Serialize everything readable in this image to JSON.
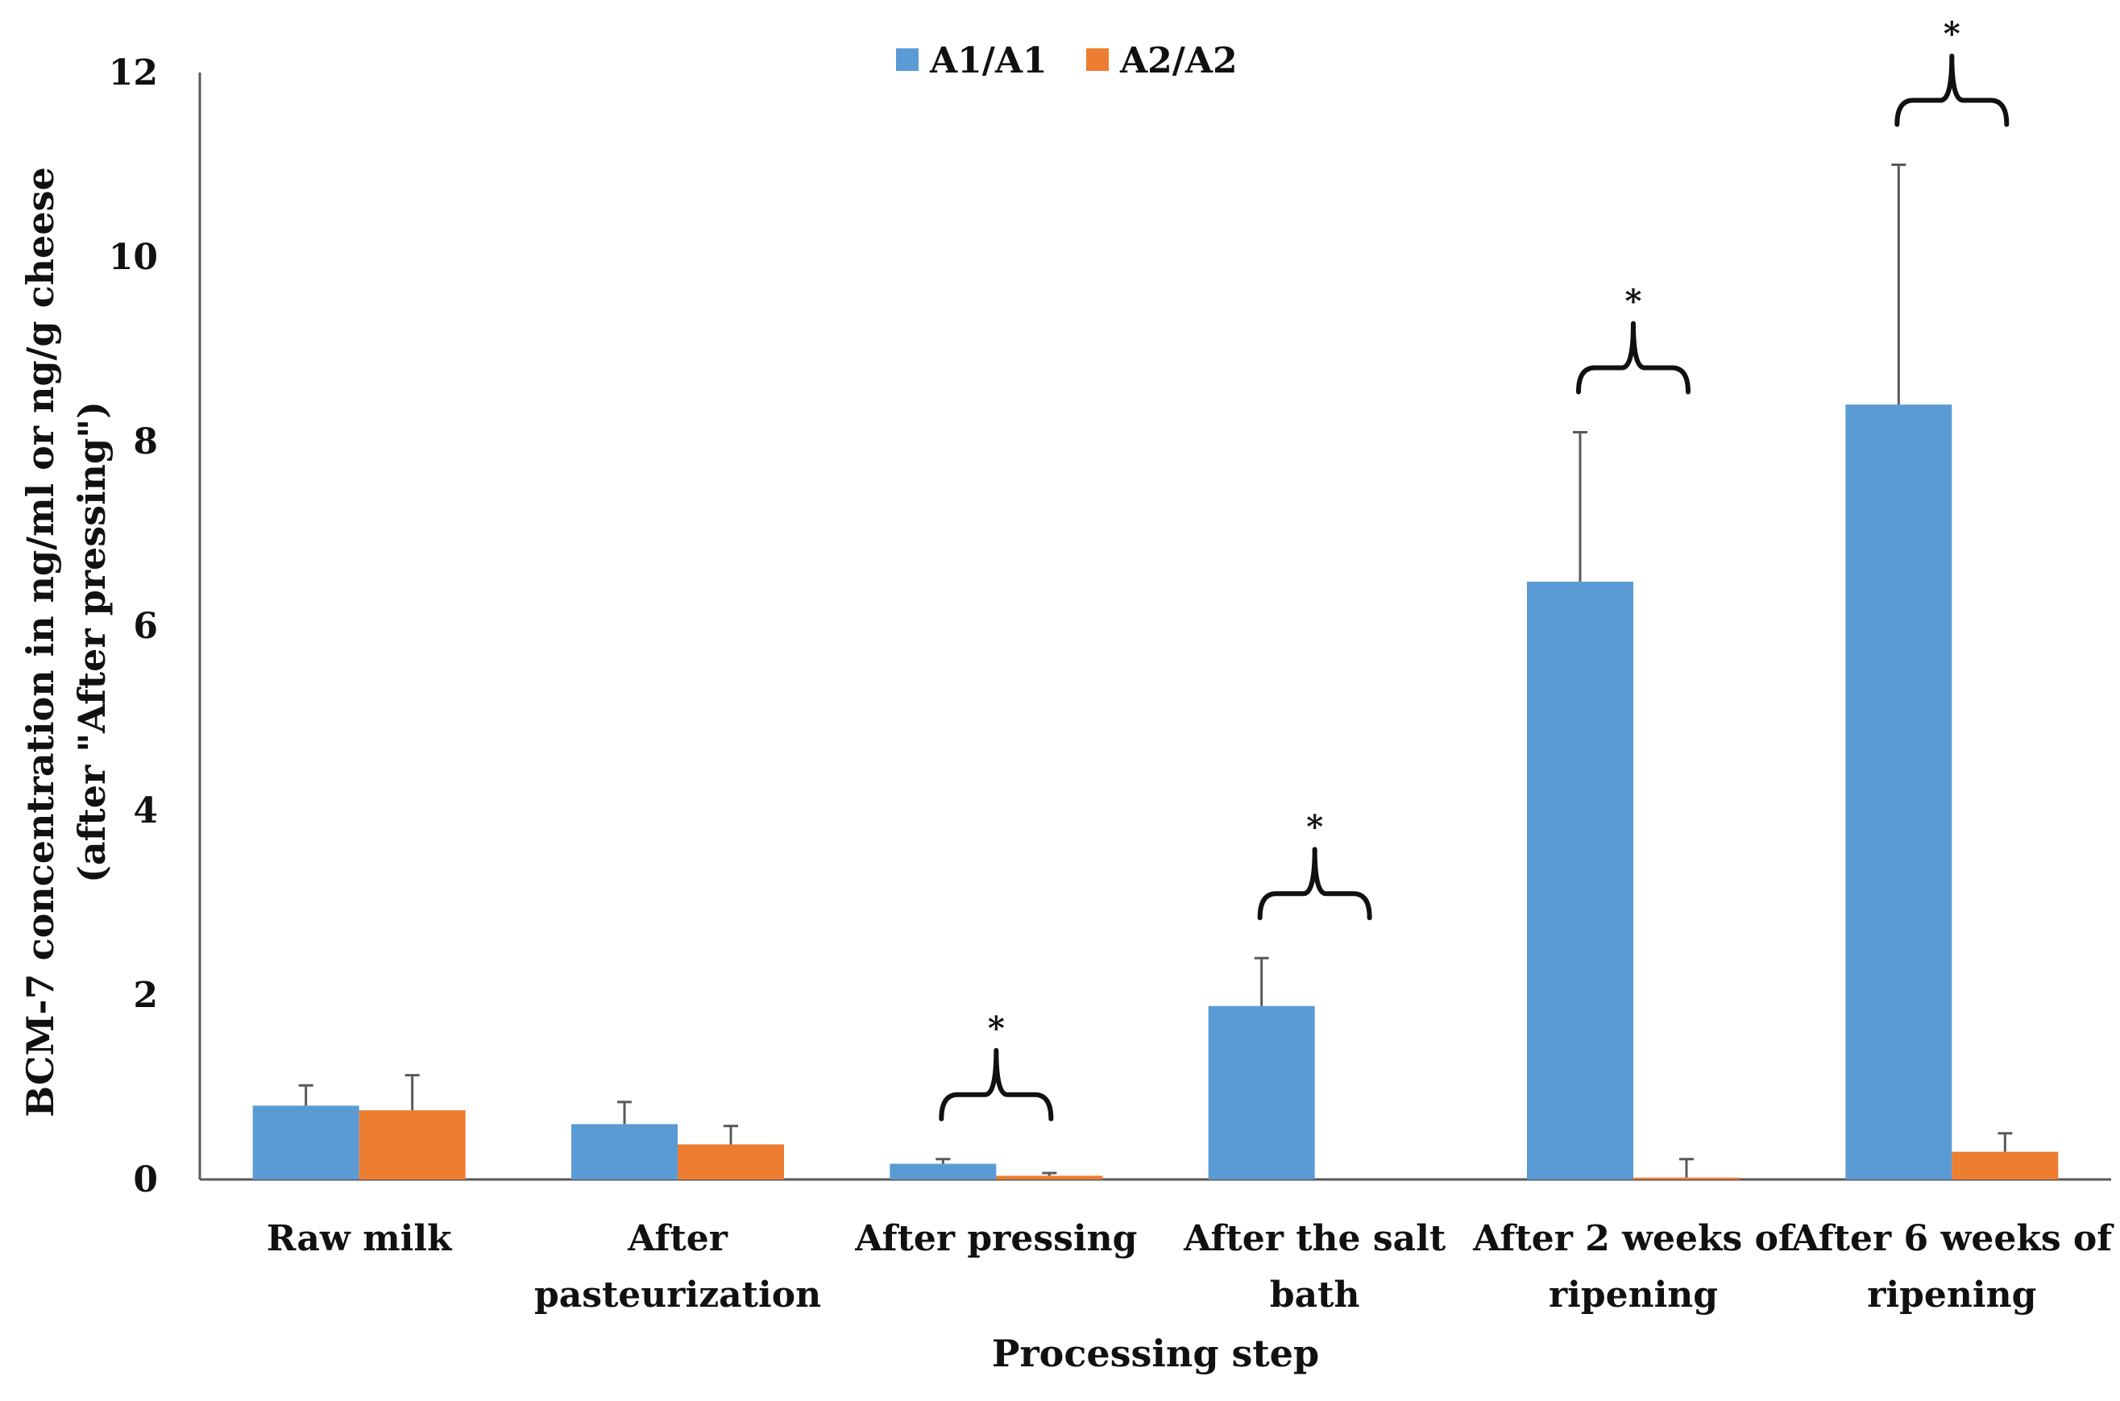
{
  "chart_data": {
    "type": "bar",
    "title": "",
    "xlabel": "Processing step",
    "ylabel": "BCM-7 concentration in ng/ml or ng/g cheese",
    "ylabel_line2": "(after \"After pressing\")",
    "ylim": [
      0,
      12
    ],
    "yticks": [
      "0",
      "2",
      "4",
      "6",
      "8",
      "10",
      "12"
    ],
    "categories": [
      [
        "Raw milk"
      ],
      [
        "After",
        "pasteurization"
      ],
      [
        "After pressing"
      ],
      [
        "After the salt",
        "bath"
      ],
      [
        "After 2 weeks of",
        "ripening"
      ],
      [
        "After 6 weeks of",
        "ripening"
      ]
    ],
    "series": [
      {
        "name": "A1/A1",
        "color": "#5b9bd5",
        "values": [
          0.8,
          0.6,
          0.17,
          1.88,
          6.48,
          8.4
        ],
        "errors": [
          0.22,
          0.24,
          0.05,
          0.52,
          1.62,
          2.6
        ]
      },
      {
        "name": "A2/A2",
        "color": "#ed7d31",
        "values": [
          0.75,
          0.38,
          0.04,
          0.0,
          0.02,
          0.3
        ],
        "errors": [
          0.38,
          0.2,
          0.03,
          0.0,
          0.2,
          0.2
        ]
      }
    ],
    "significance": [
      {
        "category_index": 2,
        "label": "*"
      },
      {
        "category_index": 3,
        "label": "*"
      },
      {
        "category_index": 4,
        "label": "*"
      },
      {
        "category_index": 5,
        "label": "*"
      }
    ],
    "legend_position": "top-center",
    "grid": false
  }
}
